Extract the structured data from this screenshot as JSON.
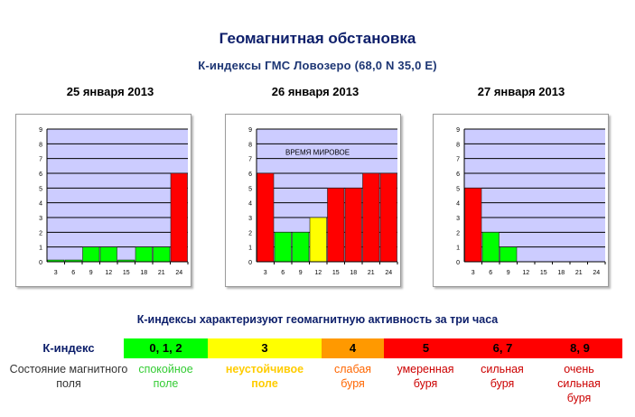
{
  "title": "Геомагнитная обстановка",
  "subtitle": "К-индексы  ГМС Ловозеро  (68,0 N 35,0 E)",
  "charts_note": "ВРЕМЯ МИРОВОЕ",
  "chart_data": [
    {
      "type": "bar",
      "title": "25 января 2013",
      "categories": [
        "3",
        "6",
        "9",
        "12",
        "15",
        "18",
        "21",
        "24"
      ],
      "values": [
        0,
        0,
        1,
        1,
        0,
        1,
        1,
        6
      ],
      "ylim": [
        0,
        9
      ],
      "yticks": [
        "0",
        "1",
        "2",
        "3",
        "4",
        "5",
        "6",
        "7",
        "8",
        "9"
      ],
      "grid": true
    },
    {
      "type": "bar",
      "title": "26 января 2013",
      "categories": [
        "3",
        "6",
        "9",
        "12",
        "15",
        "18",
        "21",
        "24"
      ],
      "values": [
        6,
        2,
        2,
        3,
        5,
        5,
        6,
        6
      ],
      "ylim": [
        0,
        9
      ],
      "yticks": [
        "0",
        "1",
        "2",
        "3",
        "4",
        "5",
        "6",
        "7",
        "8",
        "9"
      ],
      "grid": true
    },
    {
      "type": "bar",
      "title": "27 января 2013",
      "categories": [
        "3",
        "6",
        "9",
        "12",
        "15",
        "18",
        "21",
        "24"
      ],
      "values": [
        5,
        2,
        1,
        null,
        null,
        null,
        null,
        null
      ],
      "ylim": [
        0,
        9
      ],
      "yticks": [
        "0",
        "1",
        "2",
        "3",
        "4",
        "5",
        "6",
        "7",
        "8",
        "9"
      ],
      "grid": true
    }
  ],
  "legend": {
    "explanation": "К-индексы характеризуют геомагнитную активность за три часа",
    "k_label": "К-индекс",
    "state_label": "Состояние магнитного поля",
    "colors": {
      "calm": "#00ff00",
      "unstable": "#ffff00",
      "weak": "#ff9900",
      "storm": "#ff0000",
      "bar_green": "#00ff00",
      "bar_yellow": "#ffff00",
      "bar_red": "#ff0000",
      "plot_bg": "#ccccff"
    },
    "bands": [
      {
        "k": "0, 1, 2",
        "color": "#00ff00",
        "desc": "спокойное поле",
        "text_color": "#33cc33",
        "bold": false
      },
      {
        "k": "3",
        "color": "#ffff00",
        "desc": "неустойчивое поле",
        "text_color": "#ffcc00",
        "bold": true
      },
      {
        "k": "4",
        "color": "#ff9900",
        "desc": "слабая буря",
        "text_color": "#ff6600",
        "bold": false
      },
      {
        "k": "5",
        "color": "#ff0000",
        "desc": "умеренная буря",
        "text_color": "#cc0000",
        "bold": false
      },
      {
        "k": "6, 7",
        "color": "#ff0000",
        "desc": "сильная буря",
        "text_color": "#cc0000",
        "bold": false
      },
      {
        "k": "8, 9",
        "color": "#ff0000",
        "desc": "очень сильная буря",
        "text_color": "#cc0000",
        "bold": false
      }
    ]
  }
}
